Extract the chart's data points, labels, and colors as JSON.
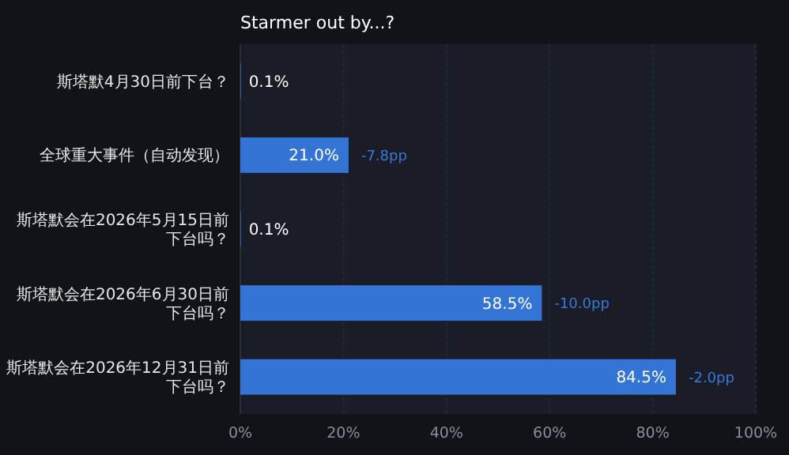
{
  "chart_data": {
    "type": "bar",
    "orientation": "horizontal",
    "title": "Starmer out by...?",
    "categories": [
      "斯塔默4月30日前下台？",
      "全球重大事件（自动发现）",
      "斯塔默会在2026年5月15日前下台吗？",
      "斯塔默会在2026年6月30日前下台吗？",
      "斯塔默会在2026年12月31日前下台吗？"
    ],
    "values": [
      0.1,
      21.0,
      0.1,
      58.5,
      84.5
    ],
    "value_labels": [
      "0.1%",
      "21.0%",
      "0.1%",
      "58.5%",
      "84.5%"
    ],
    "color": "#3474d4",
    "xlim": [
      0,
      100
    ],
    "xticks": [
      {
        "value": 0,
        "label": "0%"
      },
      {
        "value": 20,
        "label": "20%"
      },
      {
        "value": 40,
        "label": "40%"
      },
      {
        "value": 60,
        "label": "60%"
      },
      {
        "value": 80,
        "label": "80%"
      },
      {
        "value": 100,
        "label": "100%"
      }
    ],
    "grid": "x",
    "annotations": [
      {
        "text": "-7.8pp",
        "x": 21.0,
        "y": "全球重大事件（自动发现）"
      },
      {
        "text": "-10.0pp",
        "x": 58.5,
        "y": "斯塔默会在2026年6月30日前下台吗？"
      },
      {
        "text": "-2.0pp",
        "x": 84.5,
        "y": "斯塔默会在2026年12月31日前下台吗？"
      }
    ]
  }
}
